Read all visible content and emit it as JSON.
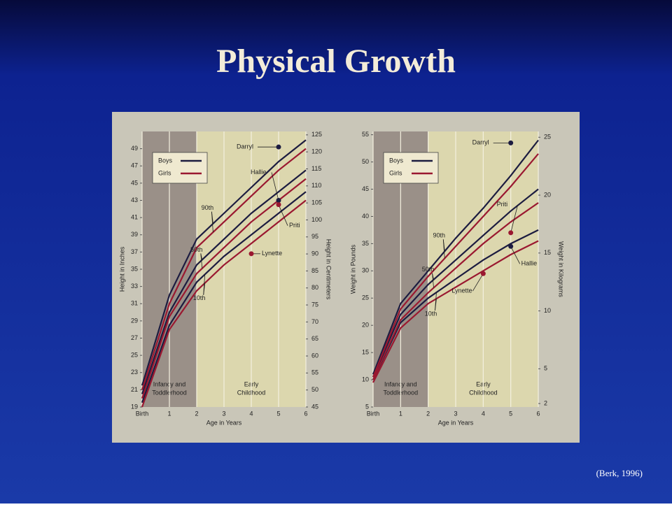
{
  "title": "Physical Growth",
  "citation": "(Berk, 1996)",
  "chart_data": [
    {
      "type": "line",
      "ylabel": "Height in Inches",
      "y2label": "Height in Centimeters",
      "xlabel": "Age in Years",
      "x": [
        0,
        1,
        2,
        3,
        4,
        5,
        6
      ],
      "xlim": [
        0,
        6
      ],
      "xticks": [
        {
          "value": 0,
          "label": "Birth"
        },
        1,
        2,
        3,
        4,
        5,
        6
      ],
      "xgrid": true,
      "ylim": [
        19,
        51
      ],
      "yticks": [
        19,
        21,
        23,
        25,
        27,
        29,
        31,
        33,
        35,
        37,
        39,
        41,
        43,
        45,
        47,
        49
      ],
      "y2lim": [
        45,
        126
      ],
      "y2ticks": [
        45,
        50,
        55,
        60,
        65,
        70,
        75,
        80,
        85,
        90,
        95,
        100,
        105,
        110,
        115,
        120,
        125
      ],
      "periods": [
        {
          "label": [
            "Infancy and",
            "Toddlerhood"
          ],
          "start": 0,
          "end": 2,
          "color": "#9a9088"
        },
        {
          "label": [
            "Early",
            "Childhood"
          ],
          "start": 2,
          "end": 6,
          "color": "#dcd7ae"
        }
      ],
      "percentiles": [
        "90th",
        "50th",
        "10th"
      ],
      "series": [
        {
          "name": "Boys",
          "color": "#1c1c40",
          "values": [
            [
              21.5,
              32,
              38.5,
              41.5,
              44.5,
              47.5,
              50
            ],
            [
              20.5,
              30,
              35.5,
              38.5,
              41.5,
              44,
              46.5
            ],
            [
              19.5,
              28.5,
              33.5,
              36.5,
              39,
              41.5,
              44
            ]
          ]
        },
        {
          "name": "Girls",
          "color": "#9a1830",
          "values": [
            [
              21,
              31,
              37.5,
              40.5,
              43.5,
              46.5,
              49
            ],
            [
              20,
              29.5,
              34.5,
              37.5,
              40.5,
              43,
              45.5
            ],
            [
              19,
              28,
              32.5,
              35.5,
              38,
              40.5,
              43
            ]
          ]
        }
      ],
      "points": [
        {
          "label": "Darryl",
          "x": 5,
          "y": 49.2,
          "color": "#1c1c40"
        },
        {
          "label": "Hallie",
          "x": 5,
          "y": 43,
          "color": "#1c1c40"
        },
        {
          "label": "Priti",
          "x": 5,
          "y": 42.5,
          "color": "#9a1830"
        },
        {
          "label": "Lynette",
          "x": 4,
          "y": 36.8,
          "color": "#9a1830"
        }
      ]
    },
    {
      "type": "line",
      "ylabel": "Weight in Pounds",
      "y2label": "Weight in Kilograms",
      "xlabel": "Age in Years",
      "x": [
        0,
        1,
        2,
        3,
        4,
        5,
        6
      ],
      "xlim": [
        0,
        6
      ],
      "xticks": [
        {
          "value": 0,
          "label": "Birth"
        },
        1,
        2,
        3,
        4,
        5,
        6
      ],
      "xgrid": true,
      "ylim": [
        5,
        55.6
      ],
      "yticks": [
        5,
        10,
        15,
        20,
        25,
        30,
        35,
        40,
        45,
        50,
        55
      ],
      "y2lim": [
        1.7,
        25.5
      ],
      "y2ticks": [
        2,
        5,
        10,
        15,
        20,
        25
      ],
      "periods": [
        {
          "label": [
            "Infancy and",
            "Toddlerhood"
          ],
          "start": 0,
          "end": 2,
          "color": "#9a9088"
        },
        {
          "label": [
            "Early",
            "Childhood"
          ],
          "start": 2,
          "end": 6,
          "color": "#dcd7ae"
        }
      ],
      "percentiles": [
        "90th",
        "50th",
        "10th"
      ],
      "series": [
        {
          "name": "Boys",
          "color": "#1c1c40",
          "values": [
            [
              11,
              24,
              30,
              36,
              41.5,
              47.5,
              54
            ],
            [
              10.5,
              22,
              27.5,
              32,
              36.5,
              41,
              45
            ],
            [
              10,
              20.5,
              25,
              28.5,
              32,
              35,
              37.5
            ]
          ]
        },
        {
          "name": "Girls",
          "color": "#9a1830",
          "values": [
            [
              10.5,
              23,
              29,
              34.5,
              40,
              45.5,
              51.5
            ],
            [
              10,
              21,
              26,
              30.5,
              35,
              39,
              42.5
            ],
            [
              9.5,
              19.5,
              24,
              27,
              30,
              33,
              35.5
            ]
          ]
        }
      ],
      "points": [
        {
          "label": "Darryl",
          "x": 5,
          "y": 53.5,
          "color": "#1c1c40"
        },
        {
          "label": "Priti",
          "x": 5,
          "y": 37,
          "color": "#9a1830"
        },
        {
          "label": "Hallie",
          "x": 5,
          "y": 34.5,
          "color": "#1c1c40"
        },
        {
          "label": "Lynette",
          "x": 4,
          "y": 29.5,
          "color": "#9a1830"
        }
      ]
    }
  ]
}
